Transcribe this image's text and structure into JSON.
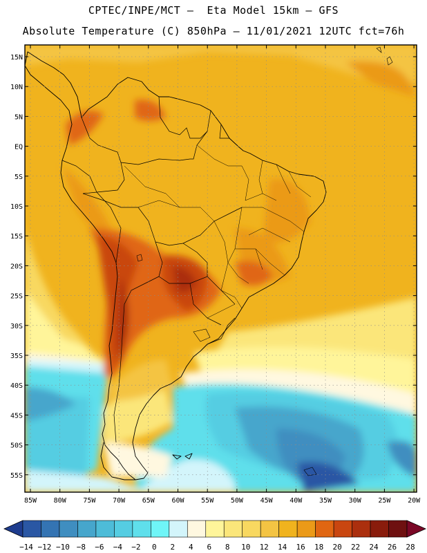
{
  "header": {
    "title_line1": "CPTEC/INPE/MCT –  Eta Model 15km – GFS",
    "title_line2": "Absolute Temperature (C) 850hPa – 11/01/2021 12UTC fct=76h"
  },
  "map": {
    "lat_labels": [
      "15N",
      "10N",
      "5N",
      "EQ",
      "5S",
      "10S",
      "15S",
      "20S",
      "25S",
      "30S",
      "35S",
      "40S",
      "45S",
      "50S",
      "55S"
    ],
    "lon_labels": [
      "85W",
      "80W",
      "75W",
      "70W",
      "65W",
      "60W",
      "55W",
      "50W",
      "45W",
      "40W",
      "35W",
      "30W",
      "25W",
      "20W"
    ]
  },
  "legend": {
    "labels": [
      "-14",
      "-12",
      "-10",
      "-8",
      "-6",
      "-4",
      "-2",
      "0",
      "2",
      "4",
      "6",
      "8",
      "10",
      "12",
      "14",
      "16",
      "18",
      "20",
      "22",
      "24",
      "26",
      "28"
    ],
    "colors": [
      "#1e3c8e",
      "#2a57a4",
      "#3474b3",
      "#3f8ec0",
      "#46a6cc",
      "#4dbcd8",
      "#55cde2",
      "#5fdfeb",
      "#6ff5f7",
      "#d3f5fb",
      "#fff8e0",
      "#fff59a",
      "#fbe67a",
      "#f8d860",
      "#f4c443",
      "#f0b31e",
      "#eb9a18",
      "#e06612",
      "#c94610",
      "#ab2f0e",
      "#891c0c",
      "#6e1010",
      "#7a0726"
    ]
  }
}
